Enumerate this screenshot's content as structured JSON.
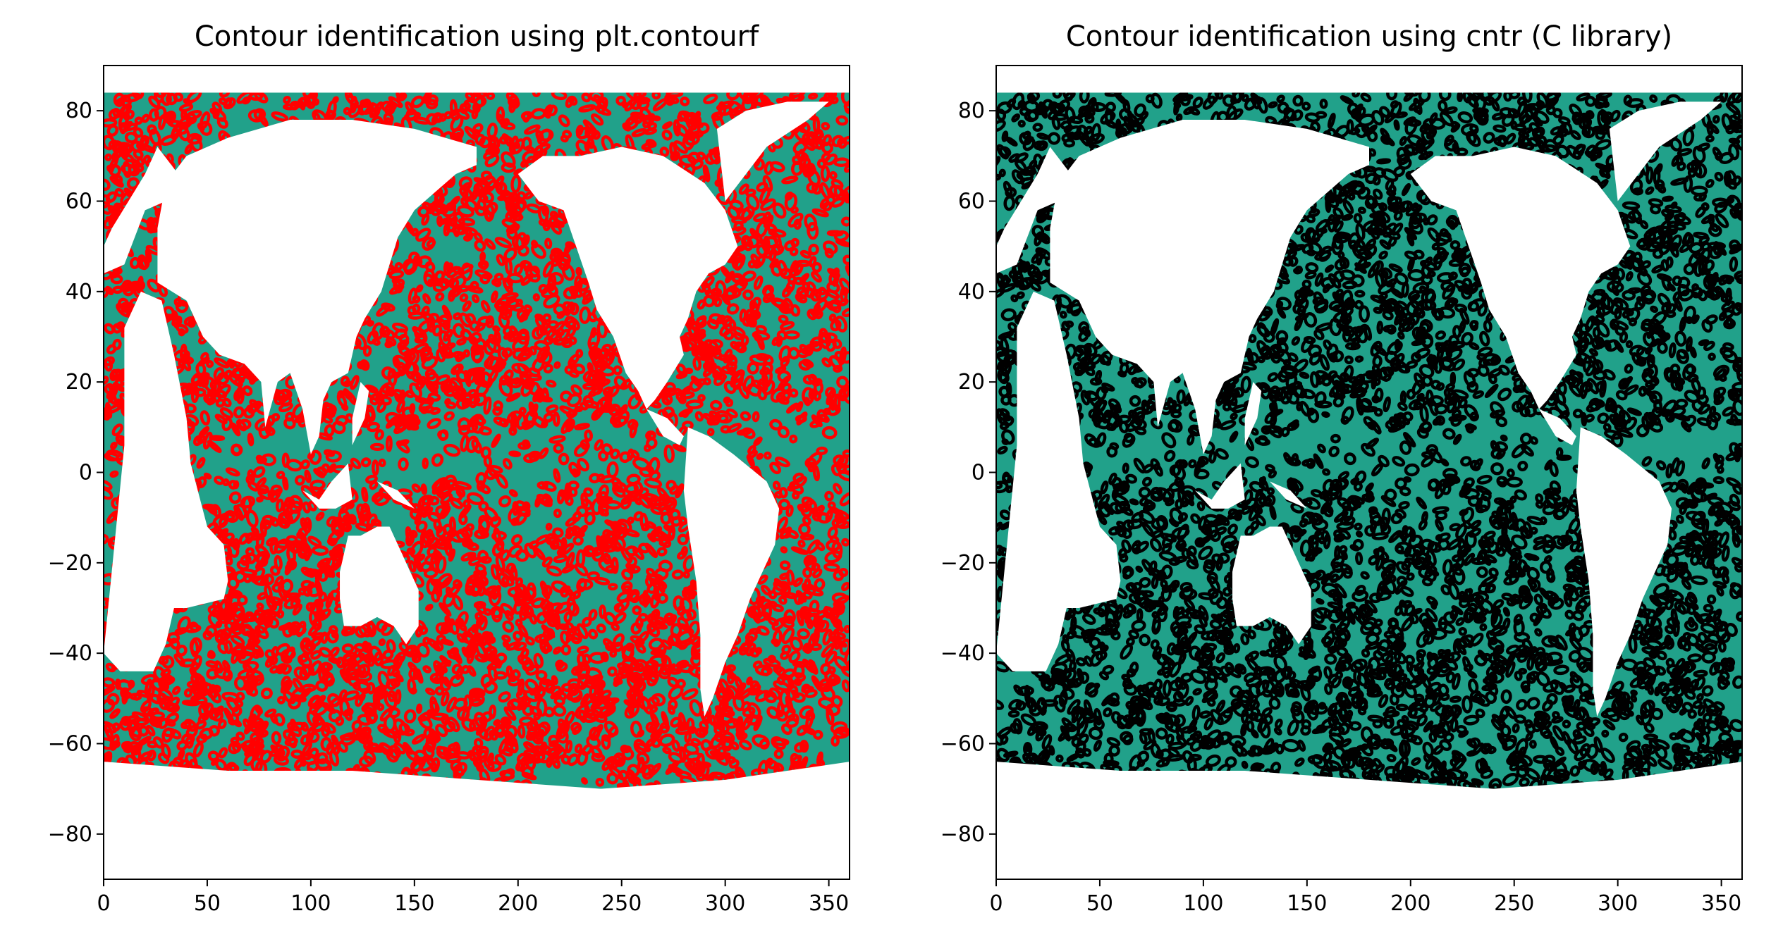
{
  "chart_data": [
    {
      "type": "contour",
      "title": "Contour identification using plt.contourf",
      "xlabel": "",
      "ylabel": "",
      "xlim": [
        0,
        360
      ],
      "ylim": [
        -90,
        90
      ],
      "xticks": [
        0,
        50,
        100,
        150,
        200,
        250,
        300,
        350
      ],
      "yticks": [
        80,
        60,
        40,
        20,
        0,
        -20,
        -40,
        -60,
        -80
      ],
      "xtick_labels": [
        "0",
        "50",
        "100",
        "150",
        "200",
        "250",
        "300",
        "350"
      ],
      "ytick_labels": [
        "80",
        "60",
        "40",
        "20",
        "0",
        "−20",
        "−40",
        "−60",
        "−80"
      ],
      "ocean_lat_range": [
        -70,
        84
      ],
      "fill_color": "#21a18a",
      "contour_color": "#ff0000",
      "grid": false
    },
    {
      "type": "contour",
      "title": "Contour identification using cntr (C library)",
      "xlabel": "",
      "ylabel": "",
      "xlim": [
        0,
        360
      ],
      "ylim": [
        -90,
        90
      ],
      "xticks": [
        0,
        50,
        100,
        150,
        200,
        250,
        300,
        350
      ],
      "yticks": [
        80,
        60,
        40,
        20,
        0,
        -20,
        -40,
        -60,
        -80
      ],
      "xtick_labels": [
        "0",
        "50",
        "100",
        "150",
        "200",
        "250",
        "300",
        "350"
      ],
      "ytick_labels": [
        "80",
        "60",
        "40",
        "20",
        "0",
        "−20",
        "−40",
        "−60",
        "−80"
      ],
      "ocean_lat_range": [
        -70,
        84
      ],
      "fill_color": "#21a18a",
      "contour_color": "#000000",
      "grid": false
    }
  ]
}
